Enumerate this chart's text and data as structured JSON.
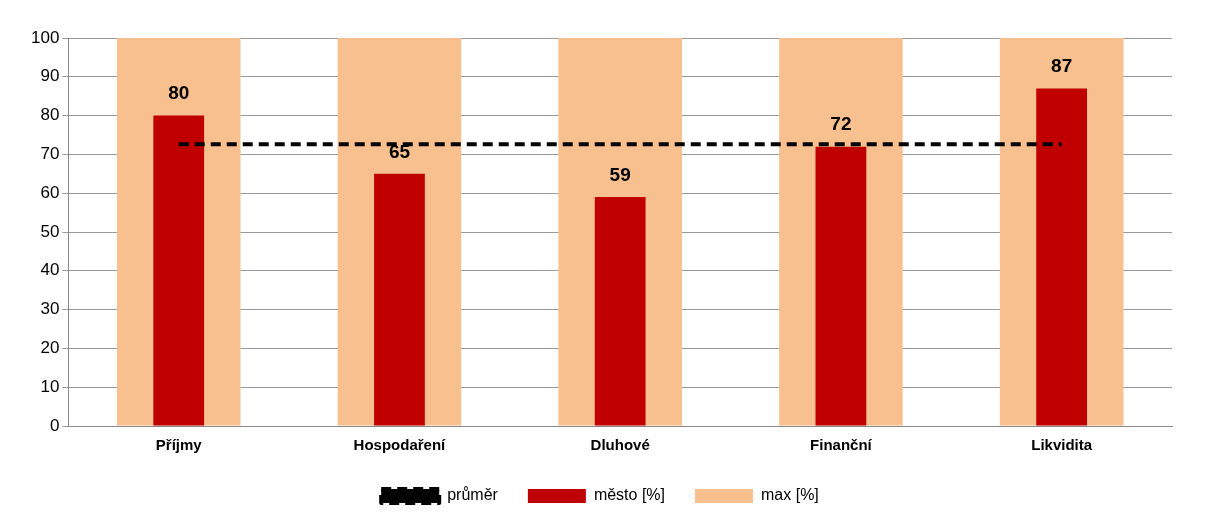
{
  "chart_data": {
    "type": "bar",
    "categories": [
      "Příjmy",
      "Hospodaření",
      "Dluhové",
      "Finanční",
      "Likvidita"
    ],
    "series": [
      {
        "name": "max [%]",
        "color": "#f9c08f",
        "values": [
          100,
          100,
          100,
          100,
          100
        ]
      },
      {
        "name": "město [%]",
        "color": "#c00000",
        "values": [
          80,
          65,
          59,
          72,
          87
        ],
        "value_labels": [
          "80",
          "65",
          "59",
          "72",
          "87"
        ]
      },
      {
        "name": "průměr",
        "type": "line",
        "color": "#000000",
        "values": [
          72.6,
          72.6,
          72.6,
          72.6,
          72.6
        ],
        "line_style": "dashed",
        "marker": "none"
      }
    ],
    "ylim": [
      0,
      100
    ],
    "yticks": [
      0,
      10,
      20,
      30,
      40,
      50,
      60,
      70,
      80,
      90,
      100
    ],
    "grid": "y",
    "legend": "bottom"
  }
}
